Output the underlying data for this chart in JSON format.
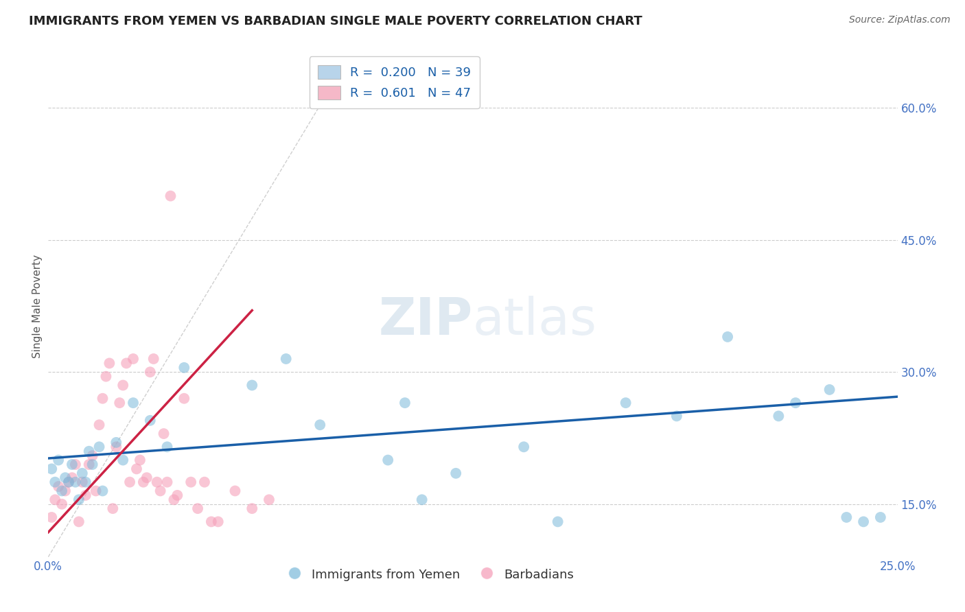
{
  "title": "IMMIGRANTS FROM YEMEN VS BARBADIAN SINGLE MALE POVERTY CORRELATION CHART",
  "source": "Source: ZipAtlas.com",
  "ylabel": "Single Male Poverty",
  "xlim": [
    0.0,
    0.25
  ],
  "ylim": [
    0.09,
    0.66
  ],
  "xticks": [
    0.0,
    0.05,
    0.1,
    0.15,
    0.2,
    0.25
  ],
  "xticklabels": [
    "0.0%",
    "",
    "",
    "",
    "",
    "25.0%"
  ],
  "yticks": [
    0.15,
    0.3,
    0.45,
    0.6
  ],
  "yticklabels": [
    "15.0%",
    "30.0%",
    "45.0%",
    "60.0%"
  ],
  "watermark_zip": "ZIP",
  "watermark_atlas": "atlas",
  "legend_label_blue": "R =  0.200   N = 39",
  "legend_label_pink": "R =  0.601   N = 47",
  "legend_color_blue": "#b8d4ea",
  "legend_color_pink": "#f5b8c8",
  "blue_scatter_x": [
    0.001,
    0.002,
    0.003,
    0.004,
    0.005,
    0.006,
    0.007,
    0.008,
    0.009,
    0.01,
    0.011,
    0.012,
    0.013,
    0.015,
    0.016,
    0.02,
    0.022,
    0.025,
    0.03,
    0.035,
    0.04,
    0.06,
    0.07,
    0.08,
    0.1,
    0.105,
    0.11,
    0.12,
    0.14,
    0.15,
    0.17,
    0.185,
    0.2,
    0.215,
    0.22,
    0.23,
    0.235,
    0.24,
    0.245
  ],
  "blue_scatter_y": [
    0.19,
    0.175,
    0.2,
    0.165,
    0.18,
    0.175,
    0.195,
    0.175,
    0.155,
    0.185,
    0.175,
    0.21,
    0.195,
    0.215,
    0.165,
    0.22,
    0.2,
    0.265,
    0.245,
    0.215,
    0.305,
    0.285,
    0.315,
    0.24,
    0.2,
    0.265,
    0.155,
    0.185,
    0.215,
    0.13,
    0.265,
    0.25,
    0.34,
    0.25,
    0.265,
    0.28,
    0.135,
    0.13,
    0.135
  ],
  "pink_scatter_x": [
    0.001,
    0.002,
    0.003,
    0.004,
    0.005,
    0.006,
    0.007,
    0.008,
    0.009,
    0.01,
    0.011,
    0.012,
    0.013,
    0.014,
    0.015,
    0.016,
    0.017,
    0.018,
    0.019,
    0.02,
    0.021,
    0.022,
    0.023,
    0.024,
    0.025,
    0.026,
    0.027,
    0.028,
    0.029,
    0.03,
    0.031,
    0.032,
    0.033,
    0.034,
    0.035,
    0.036,
    0.037,
    0.038,
    0.04,
    0.042,
    0.044,
    0.046,
    0.048,
    0.05,
    0.055,
    0.06,
    0.065
  ],
  "pink_scatter_y": [
    0.135,
    0.155,
    0.17,
    0.15,
    0.165,
    0.175,
    0.18,
    0.195,
    0.13,
    0.175,
    0.16,
    0.195,
    0.205,
    0.165,
    0.24,
    0.27,
    0.295,
    0.31,
    0.145,
    0.215,
    0.265,
    0.285,
    0.31,
    0.175,
    0.315,
    0.19,
    0.2,
    0.175,
    0.18,
    0.3,
    0.315,
    0.175,
    0.165,
    0.23,
    0.175,
    0.5,
    0.155,
    0.16,
    0.27,
    0.175,
    0.145,
    0.175,
    0.13,
    0.13,
    0.165,
    0.145,
    0.155
  ],
  "blue_line_x": [
    0.0,
    0.25
  ],
  "blue_line_y": [
    0.202,
    0.272
  ],
  "pink_line_x": [
    0.0,
    0.06
  ],
  "pink_line_y": [
    0.118,
    0.37
  ],
  "ref_line_x": [
    0.0,
    0.085
  ],
  "ref_line_y": [
    0.09,
    0.635
  ],
  "grid_color": "#cccccc",
  "blue_color": "#7ab8d9",
  "pink_color": "#f5a0ba",
  "blue_line_color": "#1a5fa8",
  "pink_line_color": "#cc2244",
  "ref_line_color": "#bbbbbb",
  "background_color": "#ffffff",
  "title_color": "#222222",
  "axis_label_color": "#555555",
  "tick_color": "#4472c4",
  "source_color": "#666666"
}
